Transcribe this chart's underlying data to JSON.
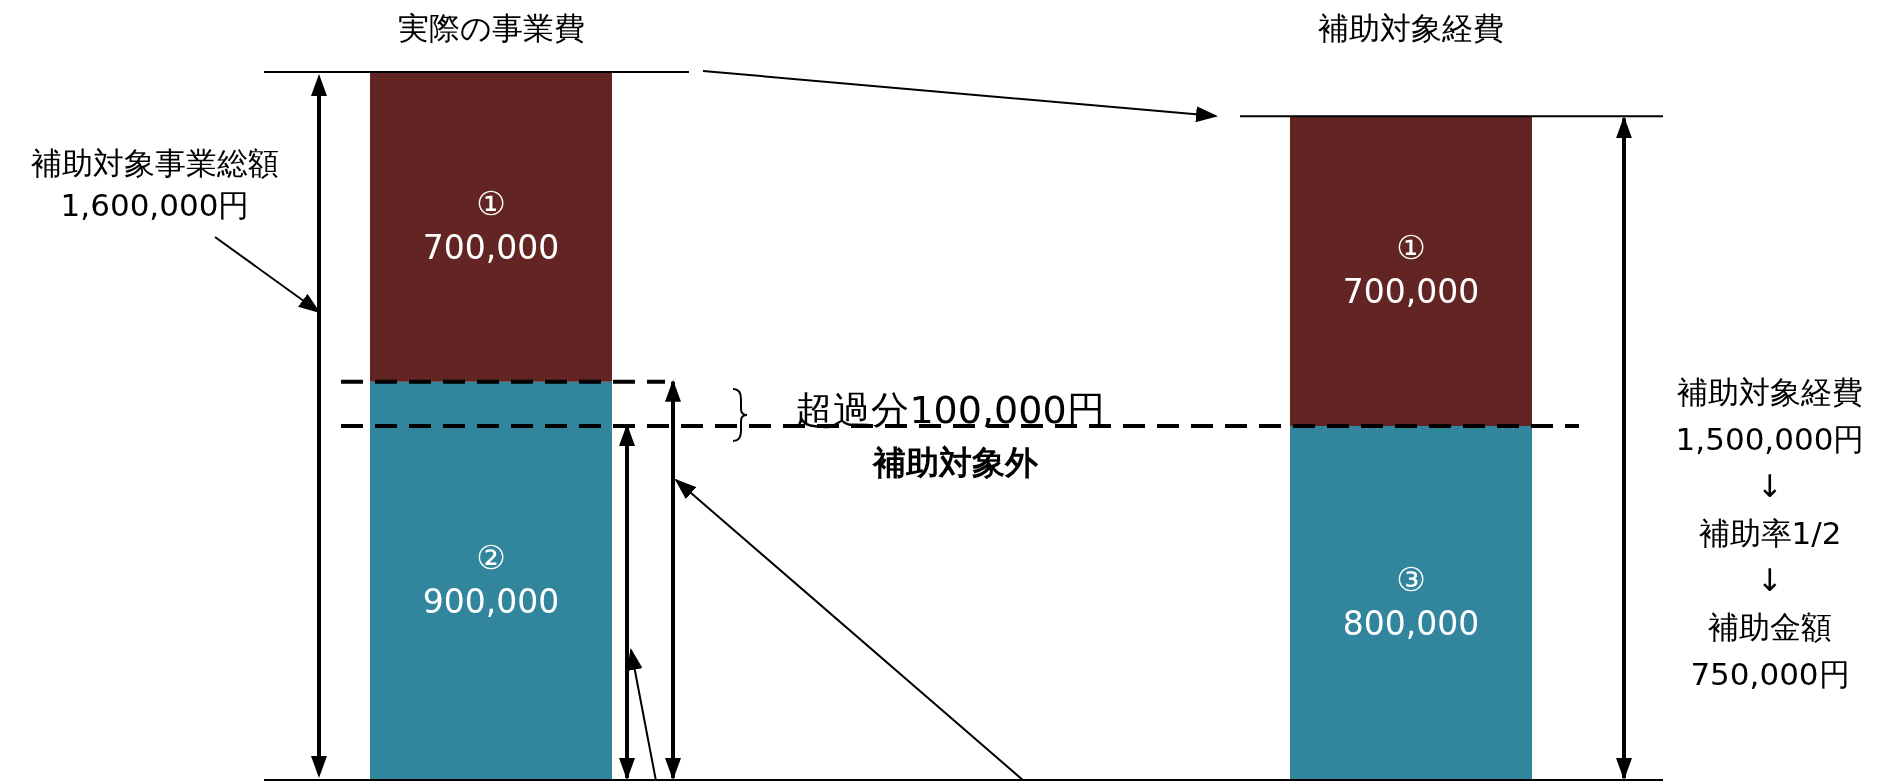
{
  "chart_data": {
    "type": "bar",
    "stacked": true,
    "categories": [
      "実際の事業費",
      "補助対象経費"
    ],
    "series": [
      {
        "color": "#632523",
        "values": [
          700000,
          700000
        ],
        "value_labels": [
          "①\n700,000",
          "①\n700,000"
        ]
      },
      {
        "color": "#31859c",
        "values": [
          900000,
          800000
        ],
        "value_labels": [
          "②\n900,000",
          "③\n800,000"
        ]
      }
    ],
    "ref_lines": [
      {
        "axis": "y",
        "value": 800000,
        "line_style": "dashed"
      },
      {
        "axis": "y",
        "value": 900000,
        "line_style": "dashed"
      },
      {
        "axis": "y",
        "value": 1600000,
        "line_style": "solid"
      },
      {
        "axis": "y",
        "value": 1500000,
        "line_style": "solid"
      }
    ],
    "annotations": [
      "補助対象事業総額\n1,600,000円",
      "超過分100,000円",
      "補助対象外",
      "補助対象経費\n1,500,000円\n↓\n補助率1/2\n↓\n補助金額\n750,000円"
    ]
  }
}
